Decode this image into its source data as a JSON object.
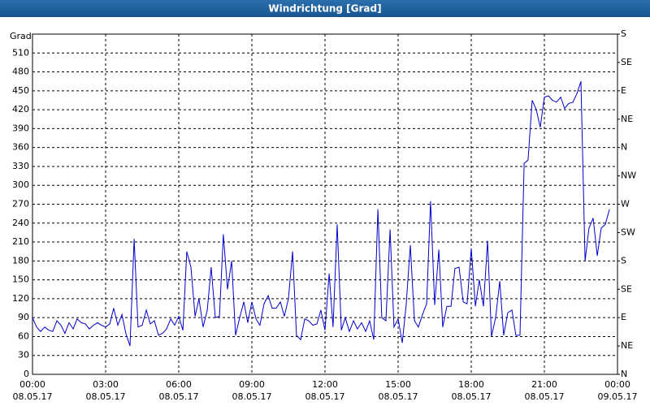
{
  "chart_data": {
    "type": "line",
    "title": "Windrichtung [Grad]",
    "y_label": "Grad",
    "x": [
      0,
      0.17,
      0.33,
      0.5,
      0.67,
      0.83,
      1,
      1.17,
      1.33,
      1.5,
      1.67,
      1.83,
      2,
      2.17,
      2.33,
      2.5,
      2.67,
      2.83,
      3,
      3.17,
      3.33,
      3.5,
      3.67,
      3.83,
      4,
      4.17,
      4.33,
      4.5,
      4.67,
      4.83,
      5,
      5.17,
      5.33,
      5.5,
      5.67,
      5.83,
      6,
      6.17,
      6.33,
      6.5,
      6.67,
      6.83,
      7,
      7.17,
      7.33,
      7.5,
      7.67,
      7.83,
      8,
      8.17,
      8.33,
      8.5,
      8.67,
      8.83,
      9,
      9.17,
      9.33,
      9.5,
      9.67,
      9.83,
      10,
      10.17,
      10.33,
      10.5,
      10.67,
      10.83,
      11,
      11.17,
      11.33,
      11.5,
      11.67,
      11.83,
      12,
      12.17,
      12.33,
      12.5,
      12.67,
      12.83,
      13,
      13.17,
      13.33,
      13.5,
      13.67,
      13.83,
      14,
      14.17,
      14.33,
      14.5,
      14.67,
      14.83,
      15,
      15.17,
      15.33,
      15.5,
      15.67,
      15.83,
      16,
      16.17,
      16.33,
      16.5,
      16.67,
      16.83,
      17,
      17.17,
      17.33,
      17.5,
      17.67,
      17.83,
      18,
      18.17,
      18.33,
      18.5,
      18.67,
      18.83,
      19,
      19.17,
      19.33,
      19.5,
      19.67,
      19.83,
      20,
      20.17,
      20.33,
      20.5,
      20.67,
      20.83,
      21,
      21.17,
      21.33,
      21.5,
      21.67,
      21.83,
      22,
      22.17,
      22.33,
      22.5,
      22.67,
      22.83,
      23,
      23.17,
      23.33,
      23.5,
      23.67
    ],
    "series": [
      {
        "name": "Windrichtung",
        "color": "#0000cc",
        "values": [
          90,
          75,
          68,
          75,
          70,
          68,
          85,
          78,
          65,
          82,
          72,
          88,
          82,
          80,
          72,
          78,
          82,
          78,
          75,
          80,
          105,
          78,
          95,
          65,
          45,
          215,
          75,
          78,
          102,
          80,
          85,
          62,
          65,
          72,
          88,
          78,
          92,
          70,
          195,
          170,
          92,
          120,
          75,
          102,
          170,
          90,
          92,
          222,
          135,
          180,
          62,
          90,
          115,
          82,
          115,
          88,
          78,
          112,
          125,
          105,
          105,
          115,
          92,
          120,
          195,
          62,
          55,
          88,
          85,
          78,
          80,
          102,
          70,
          160,
          75,
          238,
          70,
          90,
          68,
          85,
          72,
          82,
          68,
          85,
          55,
          262,
          90,
          85,
          230,
          75,
          88,
          50,
          110,
          205,
          85,
          75,
          95,
          112,
          275,
          110,
          198,
          75,
          108,
          108,
          168,
          170,
          115,
          112,
          200,
          108,
          150,
          108,
          212,
          60,
          90,
          148,
          62,
          98,
          102,
          62,
          62,
          335,
          340,
          435,
          420,
          392,
          440,
          442,
          435,
          432,
          440,
          422,
          430,
          432,
          445,
          465,
          180,
          232,
          248,
          188,
          232,
          238,
          262
        ]
      }
    ],
    "xlim": [
      0,
      24
    ],
    "xticks": [
      {
        "value": 0,
        "label": "00:00",
        "date": "08.05.17"
      },
      {
        "value": 3,
        "label": "03:00",
        "date": "08.05.17"
      },
      {
        "value": 6,
        "label": "06:00",
        "date": "08.05.17"
      },
      {
        "value": 9,
        "label": "09:00",
        "date": "08.05.17"
      },
      {
        "value": 12,
        "label": "12:00",
        "date": "08.05.17"
      },
      {
        "value": 15,
        "label": "15:00",
        "date": "08.05.17"
      },
      {
        "value": 18,
        "label": "18:00",
        "date": "08.05.17"
      },
      {
        "value": 21,
        "label": "21:00",
        "date": "08.05.17"
      },
      {
        "value": 24,
        "label": "00:00",
        "date": "09.05.17"
      }
    ],
    "ylim": [
      0,
      540
    ],
    "yticks": [
      0,
      30,
      60,
      90,
      120,
      150,
      180,
      210,
      240,
      270,
      300,
      330,
      360,
      390,
      420,
      450,
      480,
      510
    ],
    "y2lim": [
      0,
      540
    ],
    "y2ticks": [
      {
        "value": 0,
        "label": "N"
      },
      {
        "value": 45,
        "label": "NE"
      },
      {
        "value": 90,
        "label": "E"
      },
      {
        "value": 135,
        "label": "SE"
      },
      {
        "value": 180,
        "label": "S"
      },
      {
        "value": 225,
        "label": "SW"
      },
      {
        "value": 270,
        "label": "W"
      },
      {
        "value": 315,
        "label": "NW"
      },
      {
        "value": 360,
        "label": "N"
      },
      {
        "value": 405,
        "label": "NE"
      },
      {
        "value": 450,
        "label": "E"
      },
      {
        "value": 495,
        "label": "SE"
      },
      {
        "value": 540,
        "label": "S"
      }
    ],
    "grid": true
  }
}
